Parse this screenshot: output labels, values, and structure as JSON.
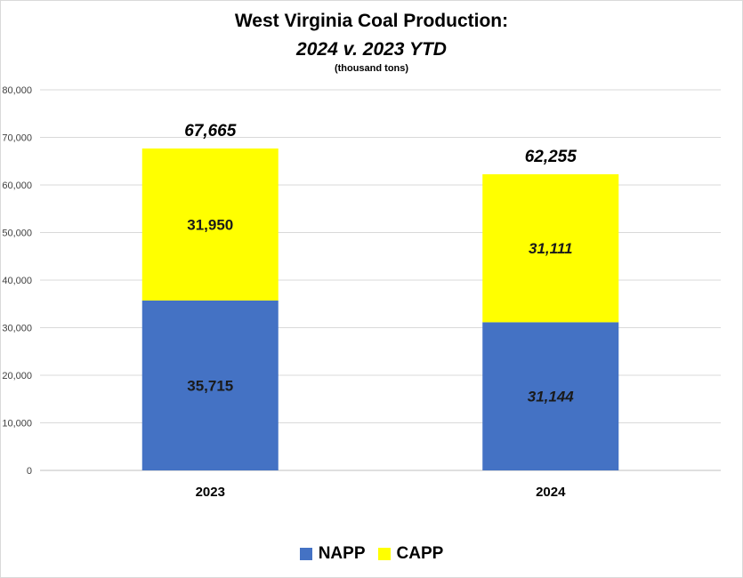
{
  "chart_data": {
    "type": "bar",
    "stacked": true,
    "title": "West Virginia Coal Production:",
    "subtitle": "2024 v. 2023 YTD",
    "units": "(thousand tons)",
    "categories": [
      "2023",
      "2024"
    ],
    "series": [
      {
        "name": "NAPP",
        "color": "#4472c4",
        "values": [
          35715,
          31144
        ],
        "labels": [
          "35,715",
          "31,144"
        ]
      },
      {
        "name": "CAPP",
        "color": "#ffff00",
        "values": [
          31950,
          31111
        ],
        "labels": [
          "31,950",
          "31,111"
        ]
      }
    ],
    "totals": [
      67665,
      62255
    ],
    "total_labels": [
      "67,665",
      "62,255"
    ],
    "ylim": [
      0,
      80000
    ],
    "yticks": [
      0,
      10000,
      20000,
      30000,
      40000,
      50000,
      60000,
      70000,
      80000
    ],
    "ytick_labels": [
      "0",
      "10,000",
      "20,000",
      "30,000",
      "40,000",
      "50,000",
      "60,000",
      "70,000",
      "80,000"
    ],
    "grid": true,
    "legend_position": "bottom"
  }
}
